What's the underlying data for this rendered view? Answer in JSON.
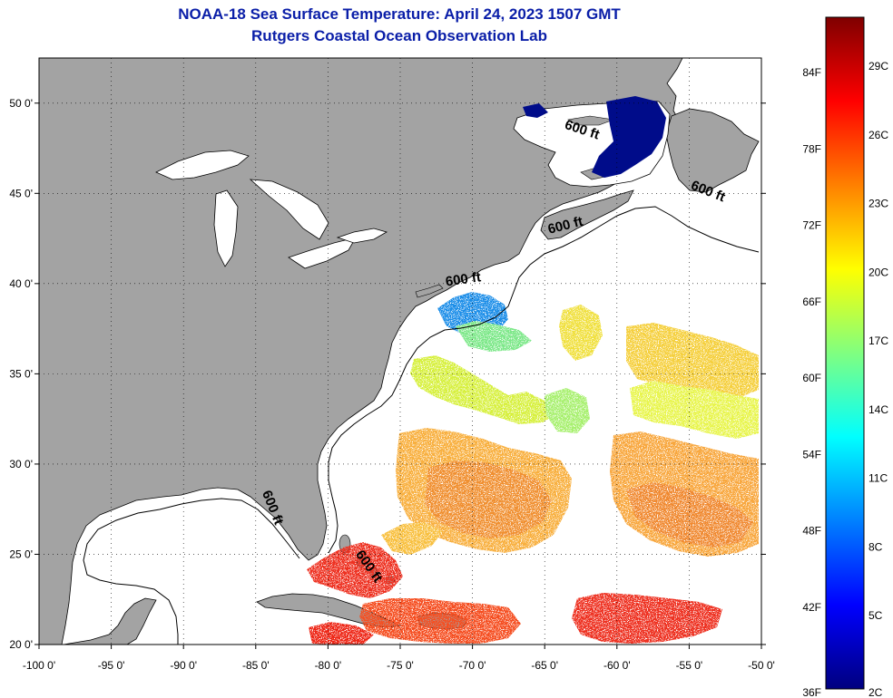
{
  "header": {
    "title": "NOAA-18 Sea Surface Temperature:  April 24, 2023 1507 GMT",
    "subtitle": "Rutgers Coastal Ocean Observation Lab"
  },
  "map": {
    "lon_range": [
      -100,
      -50
    ],
    "lat_range": [
      20,
      52.5
    ],
    "lon_ticks": [
      {
        "value": -100,
        "label": "-100 0'"
      },
      {
        "value": -95,
        "label": "-95 0'"
      },
      {
        "value": -90,
        "label": "-90 0'"
      },
      {
        "value": -85,
        "label": "-85 0'"
      },
      {
        "value": -80,
        "label": "-80 0'"
      },
      {
        "value": -75,
        "label": "-75 0'"
      },
      {
        "value": -70,
        "label": "-70 0'"
      },
      {
        "value": -65,
        "label": "-65 0'"
      },
      {
        "value": -60,
        "label": "-60 0'"
      },
      {
        "value": -55,
        "label": "-55 0'"
      },
      {
        "value": -50,
        "label": "-50 0'"
      }
    ],
    "lat_ticks": [
      {
        "value": 50,
        "label": "50 0'"
      },
      {
        "value": 45,
        "label": "45 0'"
      },
      {
        "value": 40,
        "label": "40 0'"
      },
      {
        "value": 35,
        "label": "35 0'"
      },
      {
        "value": 30,
        "label": "30 0'"
      },
      {
        "value": 25,
        "label": "25 0'"
      },
      {
        "value": 20,
        "label": "20 0'"
      }
    ],
    "grid": true,
    "land_color": "#a3a3a3",
    "ocean_color": "#ffffff",
    "contour_labels": [
      {
        "text": "600 ft",
        "lon": -62.5,
        "lat": 48.3,
        "angle": 18
      },
      {
        "text": "600 ft",
        "lon": -53.8,
        "lat": 44.9,
        "angle": 22
      },
      {
        "text": "600 ft",
        "lon": -63.5,
        "lat": 43.0,
        "angle": -14
      },
      {
        "text": "600 ft",
        "lon": -70.6,
        "lat": 40.0,
        "angle": -8
      },
      {
        "text": "600 ft",
        "lon": -84.1,
        "lat": 27.5,
        "angle": 68
      },
      {
        "text": "600 ft",
        "lon": -77.4,
        "lat": 24.2,
        "angle": 55
      }
    ]
  },
  "colorbar": {
    "fahrenheit_labels": [
      "84F",
      "78F",
      "72F",
      "66F",
      "60F",
      "54F",
      "48F",
      "42F",
      "36F"
    ],
    "celsius_labels": [
      "29C",
      "26C",
      "23C",
      "20C",
      "17C",
      "14C",
      "11C",
      "8C",
      "5C",
      "2C"
    ],
    "colors": [
      "#00007f",
      "#0000ff",
      "#0080ff",
      "#00ffff",
      "#80ff80",
      "#ffff00",
      "#ff8000",
      "#ff0000",
      "#7f0000"
    ]
  }
}
